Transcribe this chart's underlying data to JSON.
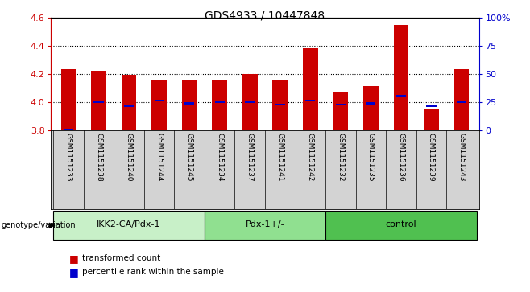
{
  "title": "GDS4933 / 10447848",
  "samples": [
    "GSM1151233",
    "GSM1151238",
    "GSM1151240",
    "GSM1151244",
    "GSM1151245",
    "GSM1151234",
    "GSM1151237",
    "GSM1151241",
    "GSM1151242",
    "GSM1151232",
    "GSM1151235",
    "GSM1151236",
    "GSM1151239",
    "GSM1151243"
  ],
  "red_values": [
    4.23,
    4.22,
    4.19,
    4.15,
    4.15,
    4.15,
    4.2,
    4.15,
    4.38,
    4.07,
    4.11,
    4.55,
    3.95,
    4.23
  ],
  "blue_values": [
    3.8,
    4.0,
    3.97,
    4.01,
    3.99,
    4.0,
    4.0,
    3.98,
    4.01,
    3.98,
    3.99,
    4.04,
    3.97,
    4.0
  ],
  "groups": [
    {
      "label": "IKK2-CA/Pdx-1",
      "start": 0,
      "end": 5,
      "color": "#c8f0c8"
    },
    {
      "label": "Pdx-1+/-",
      "start": 5,
      "end": 9,
      "color": "#90e090"
    },
    {
      "label": "control",
      "start": 9,
      "end": 14,
      "color": "#50c050"
    }
  ],
  "ylim_left": [
    3.8,
    4.6
  ],
  "ylim_right": [
    0,
    100
  ],
  "yticks_left": [
    3.8,
    4.0,
    4.2,
    4.4,
    4.6
  ],
  "yticks_right": [
    0,
    25,
    50,
    75,
    100
  ],
  "ytick_labels_right": [
    "0",
    "25",
    "50",
    "75",
    "100%"
  ],
  "bar_color": "#cc0000",
  "blue_color": "#0000cc",
  "axis_color_left": "#cc0000",
  "axis_color_right": "#0000cc",
  "legend_items": [
    {
      "color": "#cc0000",
      "label": "transformed count"
    },
    {
      "color": "#0000cc",
      "label": "percentile rank within the sample"
    }
  ],
  "genotype_label": "genotype/variation",
  "bar_width": 0.5,
  "base_value": 3.8
}
